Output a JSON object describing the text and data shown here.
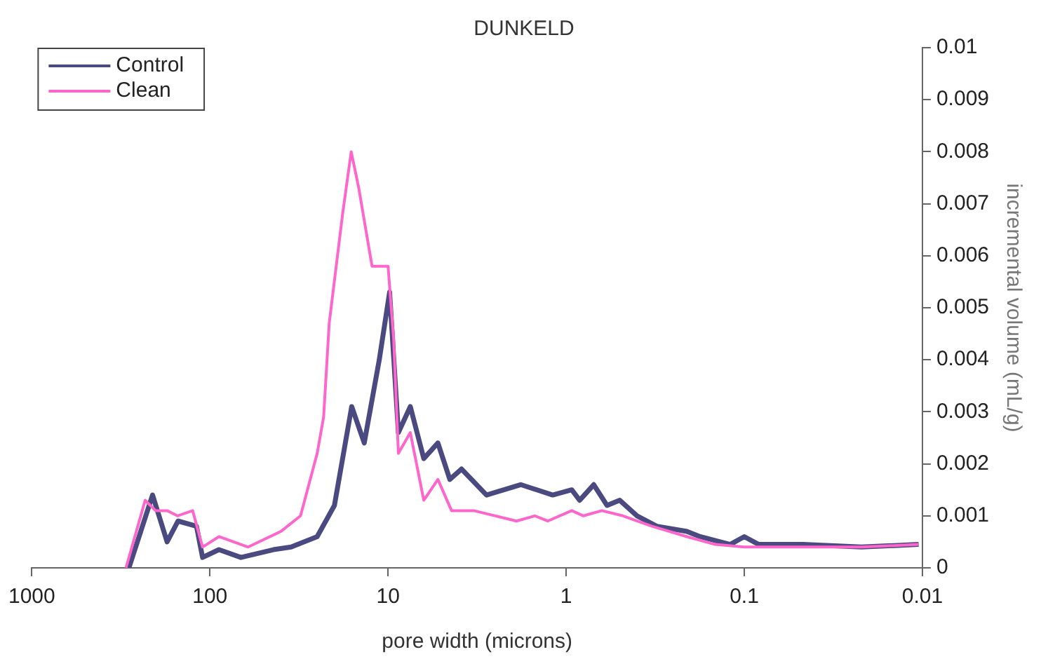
{
  "chart_data": {
    "type": "line",
    "title": "DUNKELD",
    "xlabel": "pore width (microns)",
    "ylabel": "incremental volume (mL/g)",
    "log": "x",
    "xlim": [
      1000,
      0.01
    ],
    "xticks": [
      1000,
      100,
      10,
      1,
      0.1,
      0.01
    ],
    "ylim": [
      0,
      0.01
    ],
    "yticks": [
      0,
      0.001,
      0.002,
      0.003,
      0.004,
      0.005,
      0.006,
      0.007,
      0.008,
      0.009,
      0.01
    ],
    "grid": false,
    "legend": "top left",
    "marker": "none",
    "line_style": "solid",
    "series": [
      {
        "name": "Control",
        "color": "#4b4a80",
        "x": [
          285,
          210,
          174,
          151,
          119,
          110,
          89,
          67,
          44,
          35,
          25,
          20,
          16,
          13.6,
          11.2,
          9.8,
          8.75,
          7.5,
          6.3,
          5.25,
          4.5,
          3.87,
          2.8,
          1.8,
          1.19,
          0.93,
          0.84,
          0.7,
          0.59,
          0.5,
          0.4,
          0.31,
          0.21,
          0.177,
          0.12,
          0.1,
          0.083,
          0.047,
          0.022,
          0.0105
        ],
        "values": [
          0,
          0.0014,
          0.0005,
          0.0009,
          0.0008,
          0.0002,
          0.00035,
          0.0002,
          0.00035,
          0.0004,
          0.0006,
          0.0012,
          0.0031,
          0.0024,
          0.004,
          0.0053,
          0.0026,
          0.0031,
          0.0021,
          0.0024,
          0.0017,
          0.0019,
          0.0014,
          0.0016,
          0.0014,
          0.0015,
          0.0013,
          0.0016,
          0.0012,
          0.0013,
          0.001,
          0.0008,
          0.0007,
          0.0006,
          0.00045,
          0.0006,
          0.00045,
          0.00045,
          0.0004,
          0.00045
        ]
      },
      {
        "name": "Clean",
        "color": "#ff66cc",
        "x": [
          296,
          231,
          202,
          174,
          152,
          125,
          110,
          89,
          61,
          40,
          31,
          25,
          23,
          21.4,
          18,
          16.1,
          14.6,
          12.3,
          10,
          9.3,
          8.75,
          7.5,
          6.3,
          5.25,
          4.4,
          3.3,
          1.9,
          1.5,
          1.27,
          0.93,
          0.8,
          0.63,
          0.48,
          0.33,
          0.21,
          0.146,
          0.1,
          0.063,
          0.022,
          0.0105
        ],
        "values": [
          0,
          0.0013,
          0.0011,
          0.0011,
          0.001,
          0.0011,
          0.0004,
          0.0006,
          0.0004,
          0.0007,
          0.001,
          0.0022,
          0.0029,
          0.0047,
          0.0068,
          0.008,
          0.0073,
          0.0058,
          0.0058,
          0.0044,
          0.0022,
          0.0026,
          0.0013,
          0.0017,
          0.0011,
          0.0011,
          0.0009,
          0.001,
          0.0009,
          0.0011,
          0.001,
          0.0011,
          0.001,
          0.0008,
          0.0006,
          0.00045,
          0.0004,
          0.0004,
          0.0004,
          0.00045
        ]
      }
    ]
  }
}
